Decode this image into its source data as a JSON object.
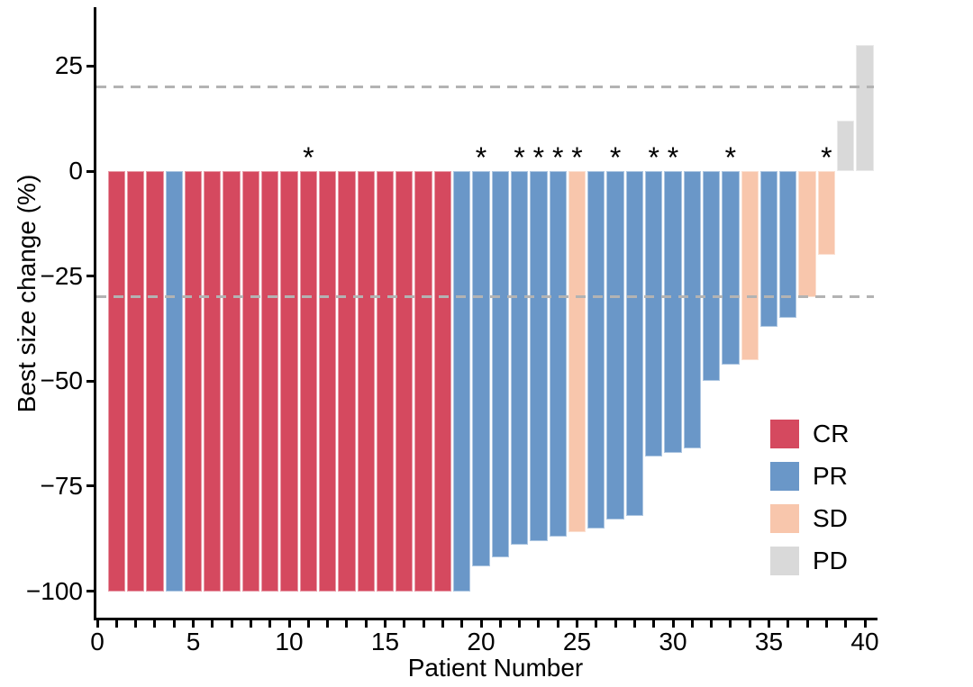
{
  "chart_data": {
    "type": "bar",
    "title": "",
    "xlabel": "Patient Number",
    "ylabel": "Best size change (%)",
    "legend_position": "right-inside",
    "grid": false,
    "xlim": [
      0,
      40.6
    ],
    "ylim": [
      -107,
      38
    ],
    "x_ticks": [
      0,
      5,
      10,
      15,
      20,
      25,
      30,
      35,
      40
    ],
    "y_ticks": [
      {
        "value": 25,
        "label": "25"
      },
      {
        "value": 0,
        "label": "0"
      },
      {
        "value": -25,
        "label": "−25"
      },
      {
        "value": -50,
        "label": "−50"
      },
      {
        "value": -75,
        "label": "−75"
      },
      {
        "value": -100,
        "label": "−100"
      }
    ],
    "threshold_lines": [
      20,
      -30
    ],
    "star_marker": "*",
    "legend": [
      {
        "label": "CR",
        "color": "#d5495f"
      },
      {
        "label": "PR",
        "color": "#6a97c8"
      },
      {
        "label": "SD",
        "color": "#f8c6ac"
      },
      {
        "label": "PD",
        "color": "#d9d9d9"
      }
    ],
    "bars": [
      {
        "patient": 1,
        "value": -100,
        "response": "CR",
        "star": false
      },
      {
        "patient": 2,
        "value": -100,
        "response": "CR",
        "star": false
      },
      {
        "patient": 3,
        "value": -100,
        "response": "CR",
        "star": false
      },
      {
        "patient": 4,
        "value": -100,
        "response": "PR",
        "star": false
      },
      {
        "patient": 5,
        "value": -100,
        "response": "CR",
        "star": false
      },
      {
        "patient": 6,
        "value": -100,
        "response": "CR",
        "star": false
      },
      {
        "patient": 7,
        "value": -100,
        "response": "CR",
        "star": false
      },
      {
        "patient": 8,
        "value": -100,
        "response": "CR",
        "star": false
      },
      {
        "patient": 9,
        "value": -100,
        "response": "CR",
        "star": false
      },
      {
        "patient": 10,
        "value": -100,
        "response": "CR",
        "star": false
      },
      {
        "patient": 11,
        "value": -100,
        "response": "CR",
        "star": true
      },
      {
        "patient": 12,
        "value": -100,
        "response": "CR",
        "star": false
      },
      {
        "patient": 13,
        "value": -100,
        "response": "CR",
        "star": false
      },
      {
        "patient": 14,
        "value": -100,
        "response": "CR",
        "star": false
      },
      {
        "patient": 15,
        "value": -100,
        "response": "CR",
        "star": false
      },
      {
        "patient": 16,
        "value": -100,
        "response": "CR",
        "star": false
      },
      {
        "patient": 17,
        "value": -100,
        "response": "CR",
        "star": false
      },
      {
        "patient": 18,
        "value": -100,
        "response": "CR",
        "star": false
      },
      {
        "patient": 19,
        "value": -100,
        "response": "PR",
        "star": false
      },
      {
        "patient": 20,
        "value": -94,
        "response": "PR",
        "star": true
      },
      {
        "patient": 21,
        "value": -92,
        "response": "PR",
        "star": false
      },
      {
        "patient": 22,
        "value": -89,
        "response": "PR",
        "star": true
      },
      {
        "patient": 23,
        "value": -88,
        "response": "PR",
        "star": true
      },
      {
        "patient": 24,
        "value": -87,
        "response": "PR",
        "star": true
      },
      {
        "patient": 25,
        "value": -86,
        "response": "SD",
        "star": true
      },
      {
        "patient": 26,
        "value": -85,
        "response": "PR",
        "star": false
      },
      {
        "patient": 27,
        "value": -83,
        "response": "PR",
        "star": true
      },
      {
        "patient": 28,
        "value": -82,
        "response": "PR",
        "star": false
      },
      {
        "patient": 29,
        "value": -68,
        "response": "PR",
        "star": true
      },
      {
        "patient": 30,
        "value": -67,
        "response": "PR",
        "star": true
      },
      {
        "patient": 31,
        "value": -66,
        "response": "PR",
        "star": false
      },
      {
        "patient": 32,
        "value": -50,
        "response": "PR",
        "star": false
      },
      {
        "patient": 33,
        "value": -46,
        "response": "PR",
        "star": true
      },
      {
        "patient": 34,
        "value": -45,
        "response": "SD",
        "star": false
      },
      {
        "patient": 35,
        "value": -37,
        "response": "PR",
        "star": false
      },
      {
        "patient": 36,
        "value": -35,
        "response": "PR",
        "star": false
      },
      {
        "patient": 37,
        "value": -30,
        "response": "SD",
        "star": false
      },
      {
        "patient": 38,
        "value": -20,
        "response": "SD",
        "star": true
      },
      {
        "patient": 39,
        "value": 12,
        "response": "PD",
        "star": false
      },
      {
        "patient": 40,
        "value": 30,
        "response": "PD",
        "star": false
      }
    ],
    "colors": {
      "CR": "#d5495f",
      "PR": "#6a97c8",
      "SD": "#f8c6ac",
      "PD": "#d9d9d9",
      "threshold_dash": "#b3b3b3",
      "axis": "#000000"
    }
  }
}
